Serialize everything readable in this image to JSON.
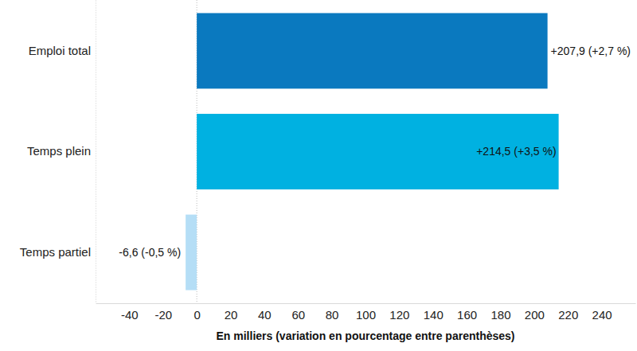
{
  "chart_data": {
    "type": "bar",
    "orientation": "horizontal",
    "categories": [
      "Emploi total",
      "Temps plein",
      "Temps partiel"
    ],
    "values": [
      207.9,
      214.5,
      -6.6
    ],
    "value_labels": [
      "+207,9 (+2,7 %)",
      "+214,5 (+3,5 %)",
      "-6,6 (-0,5 %)"
    ],
    "colors": [
      "#0a79bf",
      "#00b1e1",
      "#b5def6"
    ],
    "data_labels": true,
    "xlabel": "En milliers (variation en pourcentage entre parenthèses)",
    "xlim": [
      -60,
      260
    ],
    "xticks": [
      -40,
      -20,
      0,
      20,
      40,
      60,
      80,
      100,
      120,
      140,
      160,
      180,
      200,
      220,
      240
    ],
    "grid": false
  }
}
